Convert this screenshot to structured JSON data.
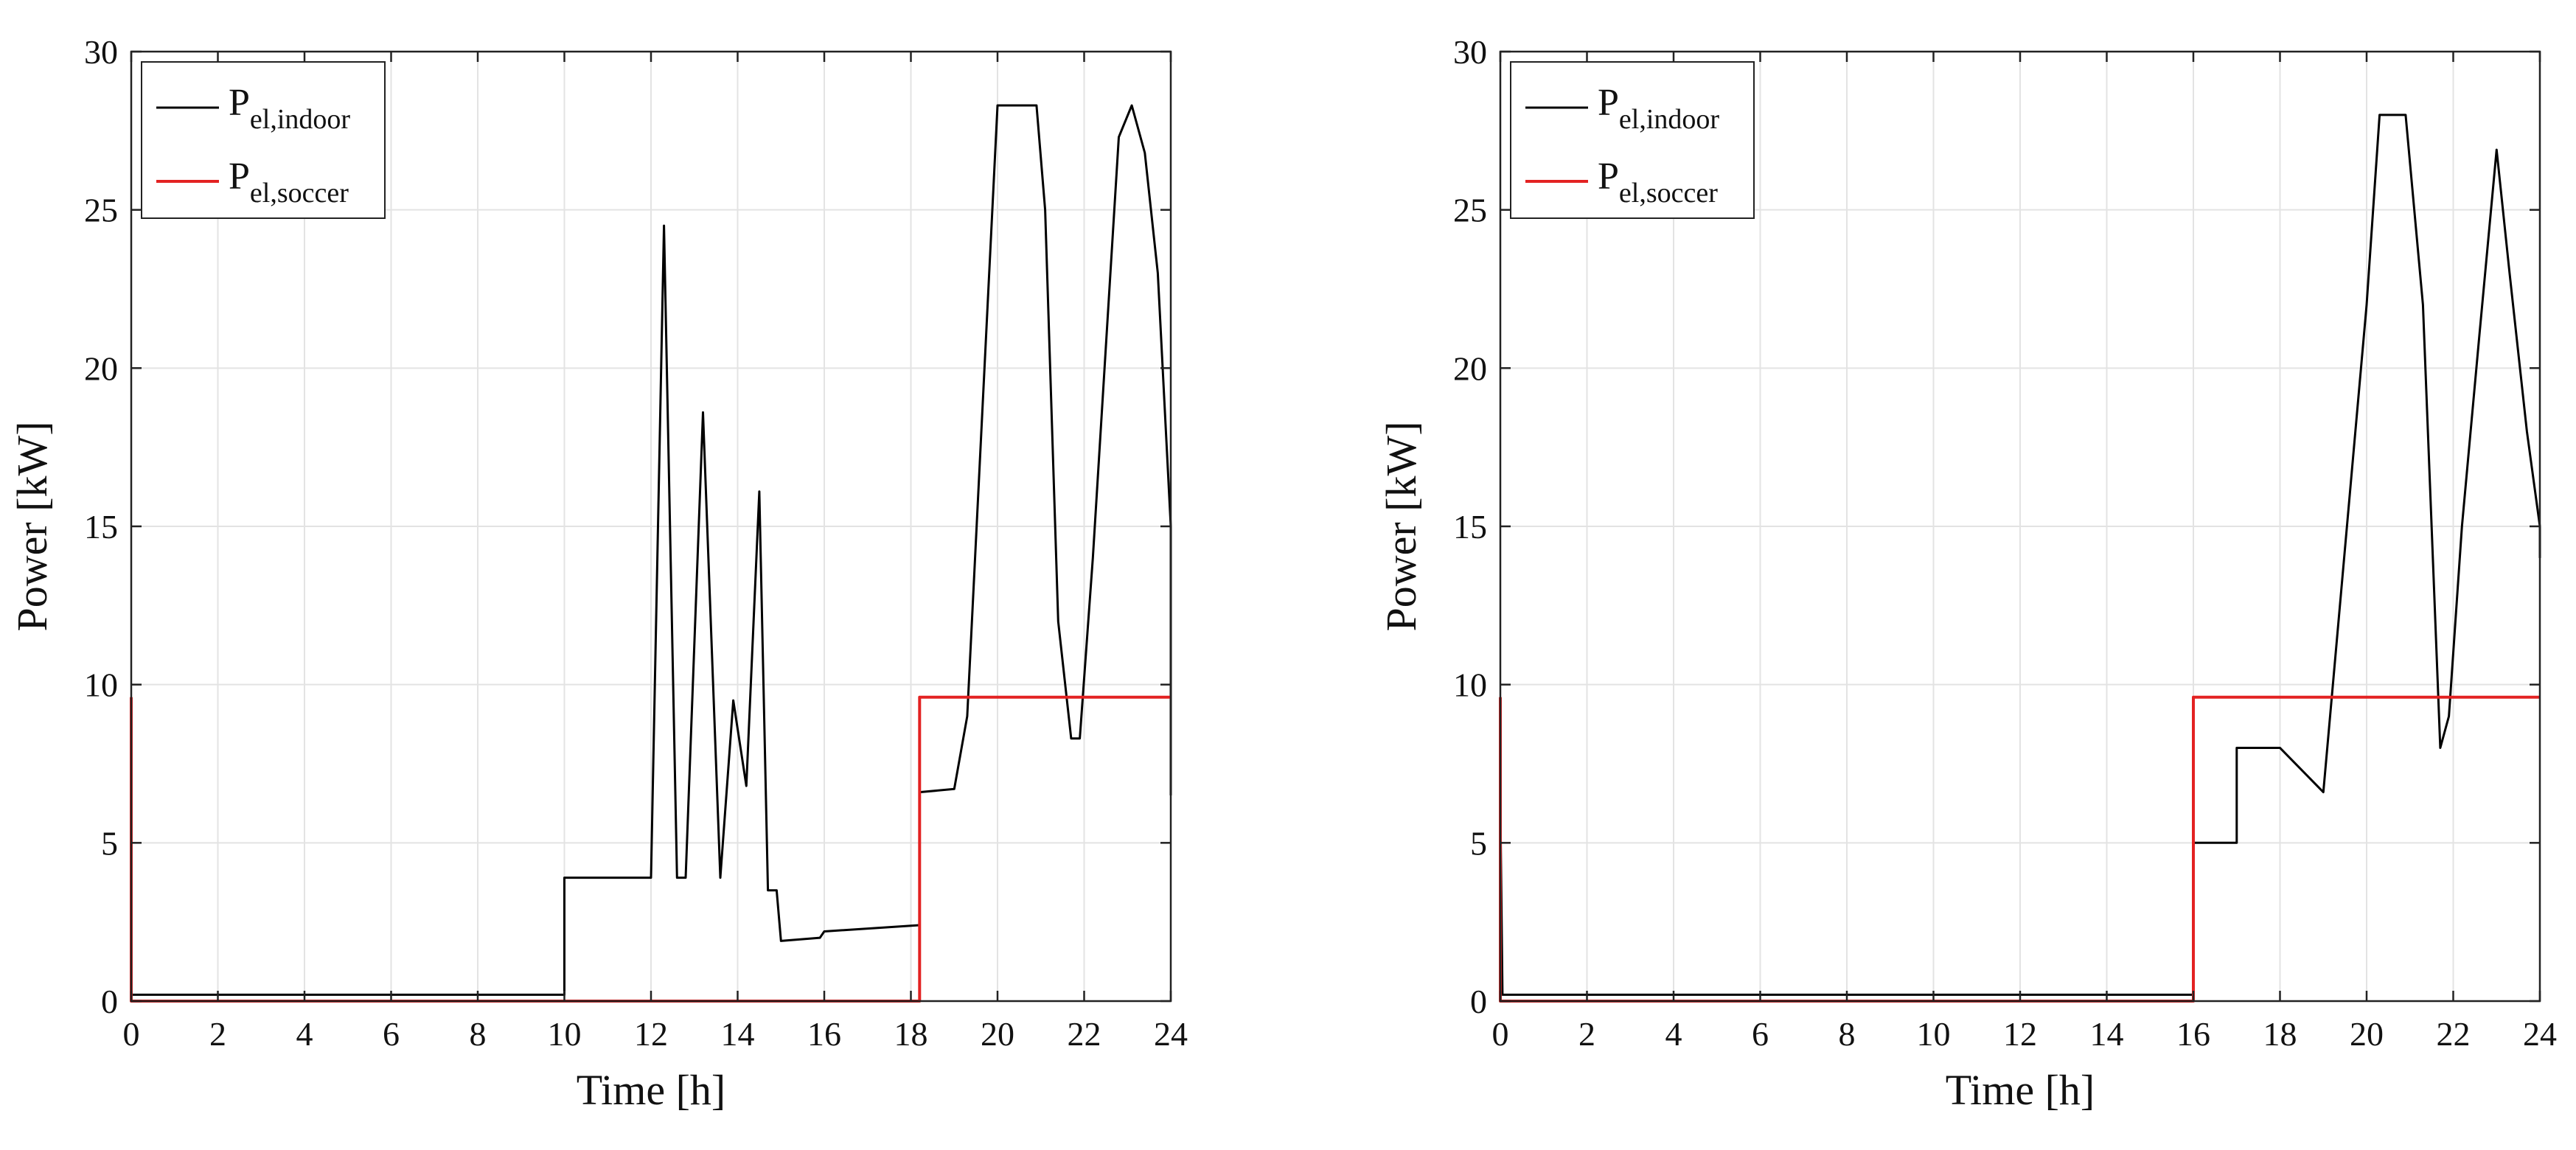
{
  "chart_data": [
    {
      "type": "line",
      "title": "",
      "xlabel": "Time [h]",
      "ylabel": "Power [kW]",
      "xlim": [
        0,
        24
      ],
      "ylim": [
        0,
        30
      ],
      "xticks": [
        0,
        2,
        4,
        6,
        8,
        10,
        12,
        14,
        16,
        18,
        20,
        22,
        24
      ],
      "yticks": [
        0,
        5,
        10,
        15,
        20,
        25,
        30
      ],
      "grid": true,
      "legend_position": "top-left",
      "series": [
        {
          "name": "P",
          "name_subscript": "el,indoor",
          "color": "#000000",
          "x": [
            0,
            10,
            10,
            12,
            12.3,
            12.6,
            12.8,
            13.2,
            13.6,
            13.9,
            14.2,
            14.5,
            14.7,
            14.9,
            15,
            15.9,
            16,
            18.2,
            18.2,
            19,
            19.3,
            20,
            20.9,
            21.1,
            21.4,
            21.7,
            21.9,
            22.2,
            22.8,
            23.1,
            23.4,
            23.7,
            24,
            24
          ],
          "y": [
            0.2,
            0.2,
            3.9,
            3.9,
            24.5,
            3.9,
            3.9,
            18.6,
            3.9,
            9.5,
            6.8,
            16.1,
            3.5,
            3.5,
            1.9,
            2.0,
            2.2,
            2.4,
            6.6,
            6.7,
            9.0,
            28.3,
            28.3,
            25.0,
            12.0,
            8.3,
            8.3,
            14.0,
            27.3,
            28.3,
            26.8,
            23.0,
            15.0,
            6.5
          ]
        },
        {
          "name": "P",
          "name_subscript": "el,soccer",
          "color": "#e32222",
          "x": [
            0,
            0,
            18.2,
            18.2,
            24
          ],
          "y": [
            9.6,
            0,
            0,
            9.6,
            9.6
          ]
        }
      ]
    },
    {
      "type": "line",
      "title": "",
      "xlabel": "Time [h]",
      "ylabel": "Power [kW]",
      "xlim": [
        0,
        24
      ],
      "ylim": [
        0,
        30
      ],
      "xticks": [
        0,
        2,
        4,
        6,
        8,
        10,
        12,
        14,
        16,
        18,
        20,
        22,
        24
      ],
      "yticks": [
        0,
        5,
        10,
        15,
        20,
        25,
        30
      ],
      "grid": true,
      "legend_position": "top-left",
      "series": [
        {
          "name": "P",
          "name_subscript": "el,indoor",
          "color": "#000000",
          "x": [
            0,
            0.05,
            16,
            16,
            17,
            17,
            18,
            19,
            20,
            20.3,
            20.9,
            21.3,
            21.7,
            21.9,
            22.2,
            22.6,
            23,
            23.3,
            23.7,
            24,
            24
          ],
          "y": [
            6.2,
            0.2,
            0.2,
            5.0,
            5.0,
            8.0,
            8.0,
            6.6,
            22.0,
            28.0,
            28.0,
            22.0,
            8.0,
            9.0,
            15.0,
            21.0,
            26.9,
            23.0,
            18.0,
            15.0,
            14.0
          ]
        },
        {
          "name": "P",
          "name_subscript": "el,soccer",
          "color": "#e32222",
          "x": [
            0,
            0,
            16,
            16,
            24
          ],
          "y": [
            9.6,
            0,
            0,
            9.6,
            9.6
          ]
        }
      ]
    }
  ]
}
